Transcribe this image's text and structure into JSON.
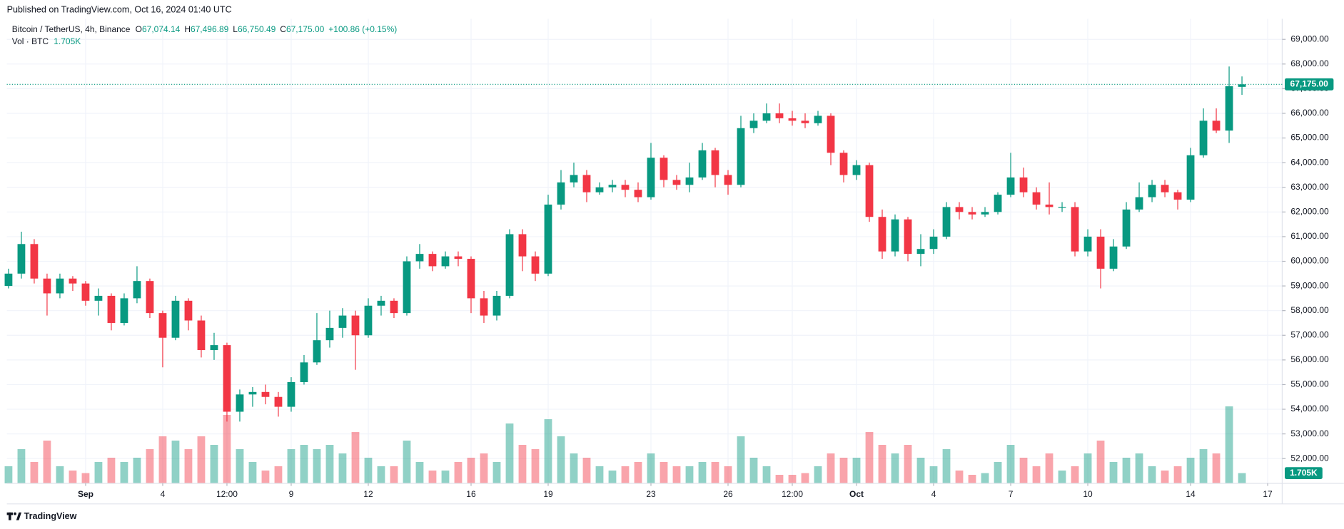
{
  "header": {
    "published": "Published on TradingView.com, Oct 16, 2024 01:40 UTC"
  },
  "footer": {
    "brand": "TradingView"
  },
  "chart_data": {
    "type": "candlestick",
    "legend": {
      "symbol": "Bitcoin / TetherUS, 4h, Binance",
      "fields": [
        {
          "key": "O",
          "text": "67,074.14"
        },
        {
          "key": "H",
          "text": "67,496.89"
        },
        {
          "key": "L",
          "text": "66,750.49"
        }
      ],
      "close_key": "C",
      "change": "+100.86 (+0.15%)",
      "volume_title": "Vol · BTC"
    },
    "up_color": "#089981",
    "down_color": "#f23645",
    "volume_up_color": "rgba(8,153,129,0.45)",
    "volume_down_color": "rgba(242,54,69,0.45)",
    "open": [
      59000,
      59500,
      60700,
      59300,
      58700,
      59300,
      59100,
      58400,
      58600,
      57500,
      58500,
      59200,
      57900,
      56900,
      58400,
      57600,
      56400,
      56600,
      53900,
      54600,
      54700,
      54500,
      54100,
      55100,
      55900,
      56800,
      57300,
      57800,
      57000,
      58200,
      58400,
      57900,
      60000,
      60300,
      59800,
      60200,
      60100,
      58500,
      57800,
      58600,
      61100,
      60200,
      59500,
      62300,
      63200,
      63500,
      62800,
      63000,
      63100,
      62900,
      62600,
      64200,
      63300,
      63100,
      63400,
      64500,
      63500,
      63100,
      65400,
      65700,
      66000,
      65800,
      65700,
      65600,
      65900,
      64400,
      63500,
      63900,
      61800,
      60400,
      61700,
      60300,
      60500,
      61000,
      62200,
      62000,
      61900,
      62000,
      62700,
      63400,
      62800,
      62300,
      62200,
      62200,
      60400,
      61000,
      59700,
      60600,
      62100,
      62600,
      63100,
      62800,
      62500,
      64300,
      65700,
      65300,
      67074.14
    ],
    "high": [
      59700,
      61200,
      60900,
      59500,
      59500,
      59400,
      59200,
      58900,
      58700,
      58700,
      59800,
      59300,
      58000,
      58600,
      58500,
      57800,
      57100,
      56700,
      54800,
      54900,
      55000,
      54700,
      55300,
      56200,
      57900,
      58000,
      58100,
      58000,
      58500,
      58600,
      58500,
      60200,
      60700,
      60400,
      60400,
      60400,
      60200,
      58800,
      58800,
      61300,
      61300,
      60400,
      62700,
      63700,
      64000,
      63700,
      63200,
      63300,
      63300,
      63200,
      64800,
      64300,
      63500,
      64000,
      64800,
      64600,
      63700,
      65900,
      66000,
      66400,
      66400,
      66100,
      66000,
      66100,
      66000,
      64500,
      64100,
      64000,
      62100,
      61900,
      61800,
      61100,
      61300,
      62400,
      62400,
      62200,
      62200,
      62800,
      64400,
      63800,
      63000,
      63200,
      62400,
      62400,
      61300,
      61300,
      60900,
      62400,
      63200,
      63300,
      63300,
      62900,
      64600,
      66200,
      66200,
      67900,
      67496.89
    ],
    "low": [
      58900,
      59300,
      59100,
      57800,
      58500,
      58800,
      58200,
      57800,
      57200,
      57400,
      58300,
      57700,
      55700,
      56800,
      57200,
      56100,
      56000,
      53500,
      53500,
      54100,
      54200,
      53700,
      53900,
      55000,
      55800,
      56500,
      56900,
      55600,
      56900,
      57800,
      57700,
      57800,
      59700,
      59600,
      59700,
      59800,
      57900,
      57500,
      57600,
      58500,
      59600,
      59200,
      59400,
      62100,
      63000,
      62400,
      62700,
      62800,
      62600,
      62400,
      62500,
      63000,
      62900,
      62800,
      63300,
      63000,
      62700,
      63000,
      65200,
      65600,
      65600,
      65500,
      65400,
      65500,
      63900,
      63200,
      63300,
      61600,
      60100,
      60200,
      60000,
      59800,
      60300,
      60900,
      61700,
      61700,
      61800,
      61900,
      62600,
      62600,
      62100,
      61900,
      62000,
      60200,
      60200,
      58900,
      59600,
      60500,
      62000,
      62400,
      62600,
      62100,
      62400,
      64200,
      65200,
      64800,
      66750.49
    ],
    "close": [
      59500,
      60700,
      59300,
      58700,
      59300,
      59100,
      58400,
      58600,
      57500,
      58500,
      59200,
      57900,
      56900,
      58400,
      57600,
      56400,
      56600,
      53900,
      54600,
      54700,
      54500,
      54100,
      55100,
      55900,
      56800,
      57300,
      57800,
      57000,
      58200,
      58400,
      57900,
      60000,
      60300,
      59800,
      60200,
      60100,
      58500,
      57800,
      58600,
      61100,
      60200,
      59500,
      62300,
      63200,
      63500,
      62800,
      63000,
      63100,
      62900,
      62600,
      64200,
      63300,
      63100,
      63400,
      64500,
      63500,
      63100,
      65400,
      65700,
      66000,
      65800,
      65700,
      65600,
      65900,
      64400,
      63500,
      63900,
      61800,
      60400,
      61700,
      60300,
      60500,
      61000,
      62200,
      62000,
      61900,
      62000,
      62700,
      63400,
      62800,
      62300,
      62200,
      62200,
      60400,
      61000,
      59700,
      60600,
      62100,
      62600,
      63100,
      62800,
      62500,
      64300,
      65700,
      65300,
      67100,
      67175
    ],
    "volume": [
      2840,
      5680,
      3550,
      7100,
      2840,
      2130,
      1704,
      3550,
      4260,
      3550,
      4260,
      5680,
      7810,
      7100,
      5680,
      7810,
      6390,
      11360,
      5680,
      3550,
      2130,
      2840,
      5680,
      6390,
      5680,
      6390,
      4970,
      8520,
      4260,
      2840,
      2840,
      7100,
      3550,
      2130,
      2130,
      3550,
      4260,
      4970,
      3550,
      9940,
      6390,
      5680,
      10650,
      7810,
      4970,
      4260,
      2840,
      2130,
      2840,
      3550,
      4970,
      3550,
      2840,
      2840,
      3550,
      3550,
      2840,
      7810,
      4260,
      2840,
      1420,
      1420,
      1704,
      2840,
      4970,
      4260,
      4260,
      8520,
      6390,
      4970,
      6390,
      4260,
      2840,
      5680,
      2130,
      1420,
      1704,
      3550,
      6390,
      4260,
      2840,
      4970,
      2130,
      2840,
      4970,
      7100,
      3550,
      4260,
      4970,
      2840,
      2130,
      2840,
      4260,
      5680,
      4970,
      12780,
      1705
    ],
    "last_price_label": "67,175.00",
    "last_volume_label": "1.705K",
    "xlim": [
      -0.13,
      99.13
    ],
    "xticks": [
      {
        "value": 6,
        "label": "Sep"
      },
      {
        "value": 12,
        "label": "4"
      },
      {
        "value": 17,
        "label": "12:00"
      },
      {
        "value": 22,
        "label": "9"
      },
      {
        "value": 28,
        "label": "12"
      },
      {
        "value": 36,
        "label": "16"
      },
      {
        "value": 42,
        "label": "19"
      },
      {
        "value": 50,
        "label": "23"
      },
      {
        "value": 56,
        "label": "26"
      },
      {
        "value": 61,
        "label": "12:00"
      },
      {
        "value": 66,
        "label": "Oct"
      },
      {
        "value": 72,
        "label": "4"
      },
      {
        "value": 78,
        "label": "7"
      },
      {
        "value": 84,
        "label": "10"
      },
      {
        "value": 92,
        "label": "14"
      },
      {
        "value": 98,
        "label": "17"
      }
    ],
    "ylim": [
      50994,
      69833
    ],
    "yticks": [
      {
        "value": 52000,
        "label": "52,000.00"
      },
      {
        "value": 53000,
        "label": "53,000.00"
      },
      {
        "value": 54000,
        "label": "54,000.00"
      },
      {
        "value": 55000,
        "label": "55,000.00"
      },
      {
        "value": 56000,
        "label": "56,000.00"
      },
      {
        "value": 57000,
        "label": "57,000.00"
      },
      {
        "value": 58000,
        "label": "58,000.00"
      },
      {
        "value": 59000,
        "label": "59,000.00"
      },
      {
        "value": 60000,
        "label": "60,000.00"
      },
      {
        "value": 61000,
        "label": "61,000.00"
      },
      {
        "value": 62000,
        "label": "62,000.00"
      },
      {
        "value": 63000,
        "label": "63,000.00"
      },
      {
        "value": 64000,
        "label": "64,000.00"
      },
      {
        "value": 65000,
        "label": "65,000.00"
      },
      {
        "value": 66000,
        "label": "66,000.00"
      },
      {
        "value": 67000,
        "label": "67,000.00"
      },
      {
        "value": 68000,
        "label": "68,000.00"
      },
      {
        "value": 69000,
        "label": "69,000.00"
      }
    ],
    "volume_lim": [
      0,
      77100
    ],
    "grid": true
  }
}
